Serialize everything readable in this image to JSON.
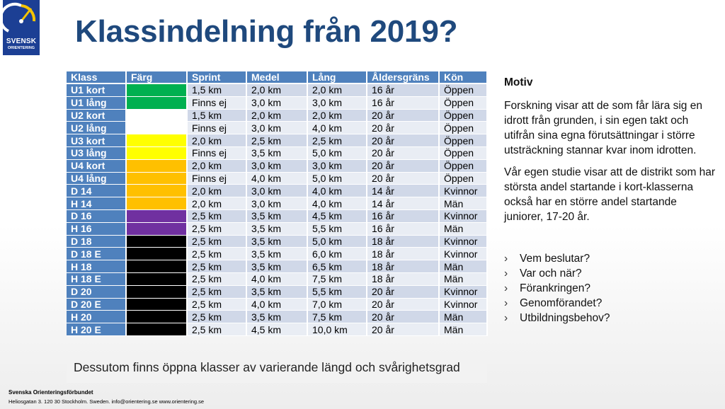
{
  "logo": {
    "line1": "SVENSK",
    "line2": "ORIENTERING",
    "bg": "#1c3f94",
    "accent": "#f5c400"
  },
  "title": "Klassindelning från 2019?",
  "table": {
    "headers": [
      "Klass",
      "Färg",
      "Sprint",
      "Medel",
      "Lång",
      "Åldersgräns",
      "Kön"
    ],
    "rows": [
      {
        "klass": "U1 kort",
        "color": "#00b050",
        "sprint": "1,5 km",
        "medel": "2,0 km",
        "lang": "2,0 km",
        "alder": "16 år",
        "kon": "Öppen"
      },
      {
        "klass": "U1 lång",
        "color": "#00b050",
        "sprint": "Finns ej",
        "medel": "3,0 km",
        "lang": "3,0 km",
        "alder": "16 år",
        "kon": "Öppen"
      },
      {
        "klass": "U2 kort",
        "color": "#ffffff",
        "sprint": "1,5 km",
        "medel": "2,0 km",
        "lang": "2,0 km",
        "alder": "20 år",
        "kon": "Öppen"
      },
      {
        "klass": "U2 lång",
        "color": "#ffffff",
        "sprint": "Finns ej",
        "medel": "3,0 km",
        "lang": "4,0 km",
        "alder": "20 år",
        "kon": "Öppen"
      },
      {
        "klass": "U3 kort",
        "color": "#ffff00",
        "sprint": "2,0 km",
        "medel": "2,5 km",
        "lang": "2,5 km",
        "alder": "20 år",
        "kon": "Öppen"
      },
      {
        "klass": "U3 lång",
        "color": "#ffff00",
        "sprint": "Finns ej",
        "medel": "3,5 km",
        "lang": "5,0 km",
        "alder": "20 år",
        "kon": "Öppen"
      },
      {
        "klass": "U4 kort",
        "color": "#ffc000",
        "sprint": "2,0 km",
        "medel": "3,0 km",
        "lang": "3,0 km",
        "alder": "20 år",
        "kon": "Öppen"
      },
      {
        "klass": "U4 lång",
        "color": "#ffc000",
        "sprint": "Finns ej",
        "medel": "4,0 km",
        "lang": "5,0 km",
        "alder": "20 år",
        "kon": "Öppen"
      },
      {
        "klass": "D 14",
        "color": "#ffc000",
        "sprint": "2,0 km",
        "medel": "3,0 km",
        "lang": "4,0 km",
        "alder": "14 år",
        "kon": "Kvinnor"
      },
      {
        "klass": "H 14",
        "color": "#ffc000",
        "sprint": "2,0 km",
        "medel": "3,0 km",
        "lang": "4,0 km",
        "alder": "14 år",
        "kon": "Män"
      },
      {
        "klass": "D 16",
        "color": "#7030a0",
        "sprint": "2,5 km",
        "medel": "3,5 km",
        "lang": "4,5 km",
        "alder": "16 år",
        "kon": "Kvinnor"
      },
      {
        "klass": "H 16",
        "color": "#7030a0",
        "sprint": "2,5 km",
        "medel": "3,5 km",
        "lang": "5,5 km",
        "alder": "16 år",
        "kon": "Män"
      },
      {
        "klass": "D 18",
        "color": "#000000",
        "sprint": "2,5 km",
        "medel": "3,5 km",
        "lang": "5,0 km",
        "alder": "18 år",
        "kon": "Kvinnor"
      },
      {
        "klass": "D 18 E",
        "color": "#000000",
        "sprint": "2,5 km",
        "medel": "3,5 km",
        "lang": "6,0 km",
        "alder": "18 år",
        "kon": "Kvinnor"
      },
      {
        "klass": "H 18",
        "color": "#000000",
        "sprint": "2,5 km",
        "medel": "3,5 km",
        "lang": "6,5 km",
        "alder": "18 år",
        "kon": "Män"
      },
      {
        "klass": "H 18 E",
        "color": "#000000",
        "sprint": "2,5 km",
        "medel": "4,0 km",
        "lang": "7,5 km",
        "alder": "18 år",
        "kon": "Män"
      },
      {
        "klass": "D 20",
        "color": "#000000",
        "sprint": "2,5 km",
        "medel": "3,5 km",
        "lang": "5,5 km",
        "alder": "20 år",
        "kon": "Kvinnor"
      },
      {
        "klass": "D 20 E",
        "color": "#000000",
        "sprint": "2,5 km",
        "medel": "4,0 km",
        "lang": "7,0 km",
        "alder": "20 år",
        "kon": "Kvinnor"
      },
      {
        "klass": "H 20",
        "color": "#000000",
        "sprint": "2,5 km",
        "medel": "3,5 km",
        "lang": "7,5 km",
        "alder": "20 år",
        "kon": "Män"
      },
      {
        "klass": "H 20 E",
        "color": "#000000",
        "sprint": "2,5 km",
        "medel": "4,5 km",
        "lang": "10,0 km",
        "alder": "20 år",
        "kon": "Män"
      }
    ]
  },
  "footnote": "Dessutom finns öppna klasser av varierande längd och svårighetsgrad",
  "side": {
    "heading": "Motiv",
    "paragraph1": "Forskning visar att de som får lära sig en idrott från grunden, i sin egen takt och utifrån sina egna förutsättningar i större utsträckning stannar kvar inom idrotten.",
    "paragraph2": "Vår egen studie visar att de distrikt som har största andel startande i kort-klasserna också har en större andel startande juniorer, 17-20 år.",
    "bullet_glyph": "›",
    "bullets": [
      "Vem beslutar?",
      "Var och när?",
      "Förankringen?",
      "Genomförandet?",
      "Utbildningsbehov?"
    ]
  },
  "footer": {
    "org": "Svenska Orienteringsförbundet",
    "address": "Heliosgatan 3. 120 30 Stockholm. Sweden. info@orientering.se www.orientering.se"
  },
  "colors": {
    "title": "#1f497d",
    "header_bg": "#4f81bd",
    "row_odd": "#d0d8e8",
    "row_even": "#e9edf4"
  }
}
